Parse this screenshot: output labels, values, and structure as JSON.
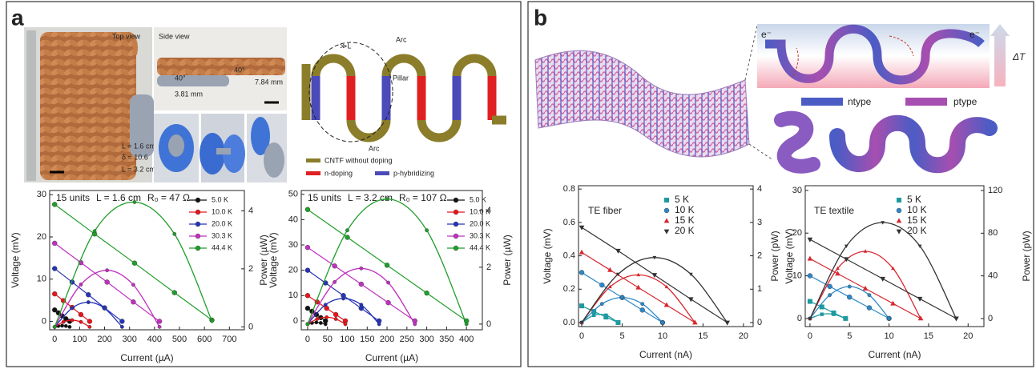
{
  "panel_a": {
    "label": "a",
    "photo_labels": {
      "top_view": "Top view",
      "side_view": "Side view",
      "length_short": "L = 1.6 cm",
      "delta": "δ = 10.6",
      "length_long": "L = 3.2 cm",
      "angle_left": "40°",
      "angle_right": "40°",
      "height_right": "7.84 mm",
      "height_left": "3.81 mm"
    },
    "diagram": {
      "arc_top": "Arc",
      "arc_bottom": "Arc",
      "pillar": "Pillar",
      "spacing": "≫L",
      "legend": [
        "CNTF without doping",
        "n-doping",
        "p-hybridizing"
      ]
    }
  },
  "panel_b": {
    "label": "b",
    "electron_left": "e⁻",
    "electron_right": "e⁻",
    "delta_t": "ΔT",
    "ntype": "ntype",
    "ptype": "ptype"
  },
  "chart_data": [
    {
      "type": "line",
      "annotation": [
        "15 units",
        "L = 1.6 cm",
        "R₀ = 47 Ω"
      ],
      "xlabel": "Current (µA)",
      "ylabel": "Voltage (mV)",
      "y2label": "Power (µW)",
      "xlim": [
        -20,
        760
      ],
      "xticks": [
        0,
        100,
        200,
        300,
        400,
        500,
        600,
        700
      ],
      "ylim": [
        -2,
        31
      ],
      "yticks": [
        0,
        10,
        20,
        30
      ],
      "y2lim": [
        -0.1,
        4.7
      ],
      "y2ticks": [
        0,
        2,
        4
      ],
      "series": [
        {
          "name": "5.0 K",
          "color": "#111111",
          "marker": "circle",
          "x": [
            0,
            15,
            30,
            45,
            60
          ],
          "values": [
            2.7,
            2.0,
            1.3,
            0.6,
            0
          ],
          "y2_values": [
            0,
            0.03,
            0.04,
            0.03,
            0
          ]
        },
        {
          "name": "10.0 K",
          "color": "#e8141c",
          "marker": "circle",
          "x": [
            0,
            35,
            70,
            105,
            140
          ],
          "values": [
            6.5,
            4.9,
            3.3,
            1.6,
            0
          ],
          "y2_values": [
            0,
            0.17,
            0.23,
            0.17,
            0
          ]
        },
        {
          "name": "20.0 K",
          "color": "#2633b8",
          "marker": "circle",
          "x": [
            0,
            70,
            135,
            200,
            270
          ],
          "values": [
            12.5,
            9.3,
            6.3,
            3.2,
            0
          ],
          "y2_values": [
            0,
            0.65,
            0.85,
            0.64,
            0
          ]
        },
        {
          "name": "30.3 K",
          "color": "#c030c0",
          "marker": "circle",
          "x": [
            0,
            105,
            210,
            315,
            420
          ],
          "values": [
            18.5,
            13.9,
            9.3,
            4.6,
            0
          ],
          "y2_values": [
            0,
            1.46,
            1.95,
            1.45,
            0
          ]
        },
        {
          "name": "44.4 K",
          "color": "#1f9e2a",
          "marker": "circle",
          "x": [
            0,
            160,
            320,
            480,
            630
          ],
          "values": [
            27.7,
            20.7,
            13.8,
            6.8,
            0.3
          ],
          "y2_values": [
            0,
            3.3,
            4.3,
            3.2,
            0.2
          ]
        }
      ]
    },
    {
      "type": "line",
      "annotation": [
        "15 units",
        "L = 3.2 cm",
        "R₀ = 107 Ω"
      ],
      "xlabel": "Current (µA)",
      "ylabel": "Voltage (mV)",
      "y2label": "Power (µW)",
      "xlim": [
        -16,
        440
      ],
      "xticks": [
        0,
        50,
        100,
        150,
        200,
        250,
        300,
        350,
        400
      ],
      "ylim": [
        -3.5,
        51.5
      ],
      "yticks": [
        0,
        10,
        20,
        30,
        40,
        50
      ],
      "y2lim": [
        -0.2,
        4.7
      ],
      "y2ticks": [
        0,
        2,
        4
      ],
      "series": [
        {
          "name": "5.0 K",
          "color": "#111111",
          "marker": "circle",
          "x": [
            0,
            11,
            22,
            33,
            45
          ],
          "values": [
            5,
            3.8,
            2.5,
            1.3,
            0
          ],
          "y2_values": [
            0,
            0.04,
            0.06,
            0.04,
            0
          ]
        },
        {
          "name": "10.0 K",
          "color": "#e8141c",
          "marker": "circle",
          "x": [
            0,
            24,
            48,
            71,
            95
          ],
          "values": [
            10,
            7.5,
            5,
            2.5,
            0
          ],
          "y2_values": [
            0,
            0.18,
            0.24,
            0.18,
            0
          ]
        },
        {
          "name": "20.0 K",
          "color": "#2633b8",
          "marker": "circle",
          "x": [
            0,
            45,
            90,
            135,
            180
          ],
          "values": [
            20,
            15,
            10,
            5,
            0
          ],
          "y2_values": [
            0,
            0.68,
            0.9,
            0.68,
            0
          ]
        },
        {
          "name": "30.3 K",
          "color": "#c030c0",
          "marker": "circle",
          "x": [
            0,
            68,
            135,
            203,
            270
          ],
          "values": [
            29,
            21.7,
            14.5,
            7.2,
            0
          ],
          "y2_values": [
            0,
            1.48,
            1.96,
            1.46,
            0
          ]
        },
        {
          "name": "44.4 K",
          "color": "#1f9e2a",
          "marker": "circle",
          "x": [
            0,
            100,
            200,
            300,
            400
          ],
          "values": [
            44,
            33,
            22,
            11,
            0
          ],
          "y2_values": [
            0,
            3.3,
            4.4,
            3.3,
            0
          ]
        }
      ]
    },
    {
      "type": "line",
      "annotation": [
        "TE fiber"
      ],
      "xlabel": "Current (nA)",
      "ylabel": "Voltage (mV)",
      "y2label": "Power (pW)",
      "xlim": [
        -0.4,
        21.2
      ],
      "xticks": [
        0,
        5,
        10,
        15,
        20
      ],
      "ylim": [
        -0.024,
        0.82
      ],
      "yticks": [
        {
          "value": 0,
          "label": "0.0"
        },
        0.2,
        0.4,
        0.6,
        0.8
      ],
      "y2lim": [
        -0.12,
        4.1
      ],
      "y2ticks": [
        0,
        1,
        2,
        3,
        4
      ],
      "series": [
        {
          "name": "5 K",
          "color": "#1d9aa0",
          "marker": "square",
          "x": [
            0,
            1.5,
            3,
            4.5
          ],
          "values": [
            0.1,
            0.067,
            0.033,
            0
          ],
          "y2_values": [
            0,
            0.22,
            0.22,
            0
          ]
        },
        {
          "name": "10 K",
          "color": "#2b88c8",
          "marker": "circle",
          "x": [
            0,
            2.5,
            5,
            7.5,
            10
          ],
          "values": [
            0.3,
            0.225,
            0.15,
            0.075,
            0
          ],
          "y2_values": [
            0,
            0.56,
            0.75,
            0.56,
            0
          ]
        },
        {
          "name": "15 K",
          "color": "#d6282f",
          "marker": "triangle",
          "x": [
            0,
            3.5,
            7,
            10.5,
            14
          ],
          "values": [
            0.42,
            0.315,
            0.21,
            0.105,
            0
          ],
          "y2_values": [
            0,
            1.07,
            1.43,
            1.07,
            0
          ]
        },
        {
          "name": "20 K",
          "color": "#333333",
          "marker": "triangle-down",
          "x": [
            0,
            4.5,
            9,
            13.5,
            18
          ],
          "values": [
            0.57,
            0.43,
            0.285,
            0.14,
            0
          ],
          "y2_values": [
            0,
            1.45,
            1.95,
            1.45,
            0
          ]
        }
      ]
    },
    {
      "type": "line",
      "annotation": [
        "TE textile"
      ],
      "xlabel": "Current (nA)",
      "ylabel": "Voltage (mV)",
      "y2label": "Power (pW)",
      "xlim": [
        -0.6,
        22.0
      ],
      "xticks": [
        0,
        5,
        10,
        15,
        20
      ],
      "ylim": [
        -1.9,
        31.1
      ],
      "yticks": [
        0,
        10,
        20,
        30
      ],
      "y2lim": [
        -7.5,
        124.5
      ],
      "y2ticks": [
        0,
        40,
        80,
        120
      ],
      "series": [
        {
          "name": "5 K",
          "color": "#1d9aa0",
          "marker": "square",
          "x": [
            0,
            1.5,
            3,
            4.5
          ],
          "values": [
            4,
            2.7,
            1.3,
            0
          ],
          "y2_values": [
            0,
            4,
            4,
            0
          ]
        },
        {
          "name": "10 K",
          "color": "#2b88c8",
          "marker": "circle",
          "x": [
            0,
            2.5,
            5,
            7.5,
            10
          ],
          "values": [
            10,
            7.5,
            5,
            2.5,
            0
          ],
          "y2_values": [
            0,
            22,
            30,
            22,
            0
          ]
        },
        {
          "name": "15 K",
          "color": "#d6282f",
          "marker": "triangle",
          "x": [
            0,
            3.5,
            7,
            10.5,
            14
          ],
          "values": [
            14,
            10.5,
            7,
            3.5,
            0
          ],
          "y2_values": [
            0,
            47,
            63,
            47,
            0
          ]
        },
        {
          "name": "20 K",
          "color": "#333333",
          "marker": "triangle-down",
          "x": [
            0,
            4.6,
            9.2,
            13.9,
            18.5
          ],
          "values": [
            18.5,
            13.9,
            9.3,
            4.6,
            0
          ],
          "y2_values": [
            0,
            68,
            90,
            68,
            0
          ]
        }
      ]
    }
  ]
}
